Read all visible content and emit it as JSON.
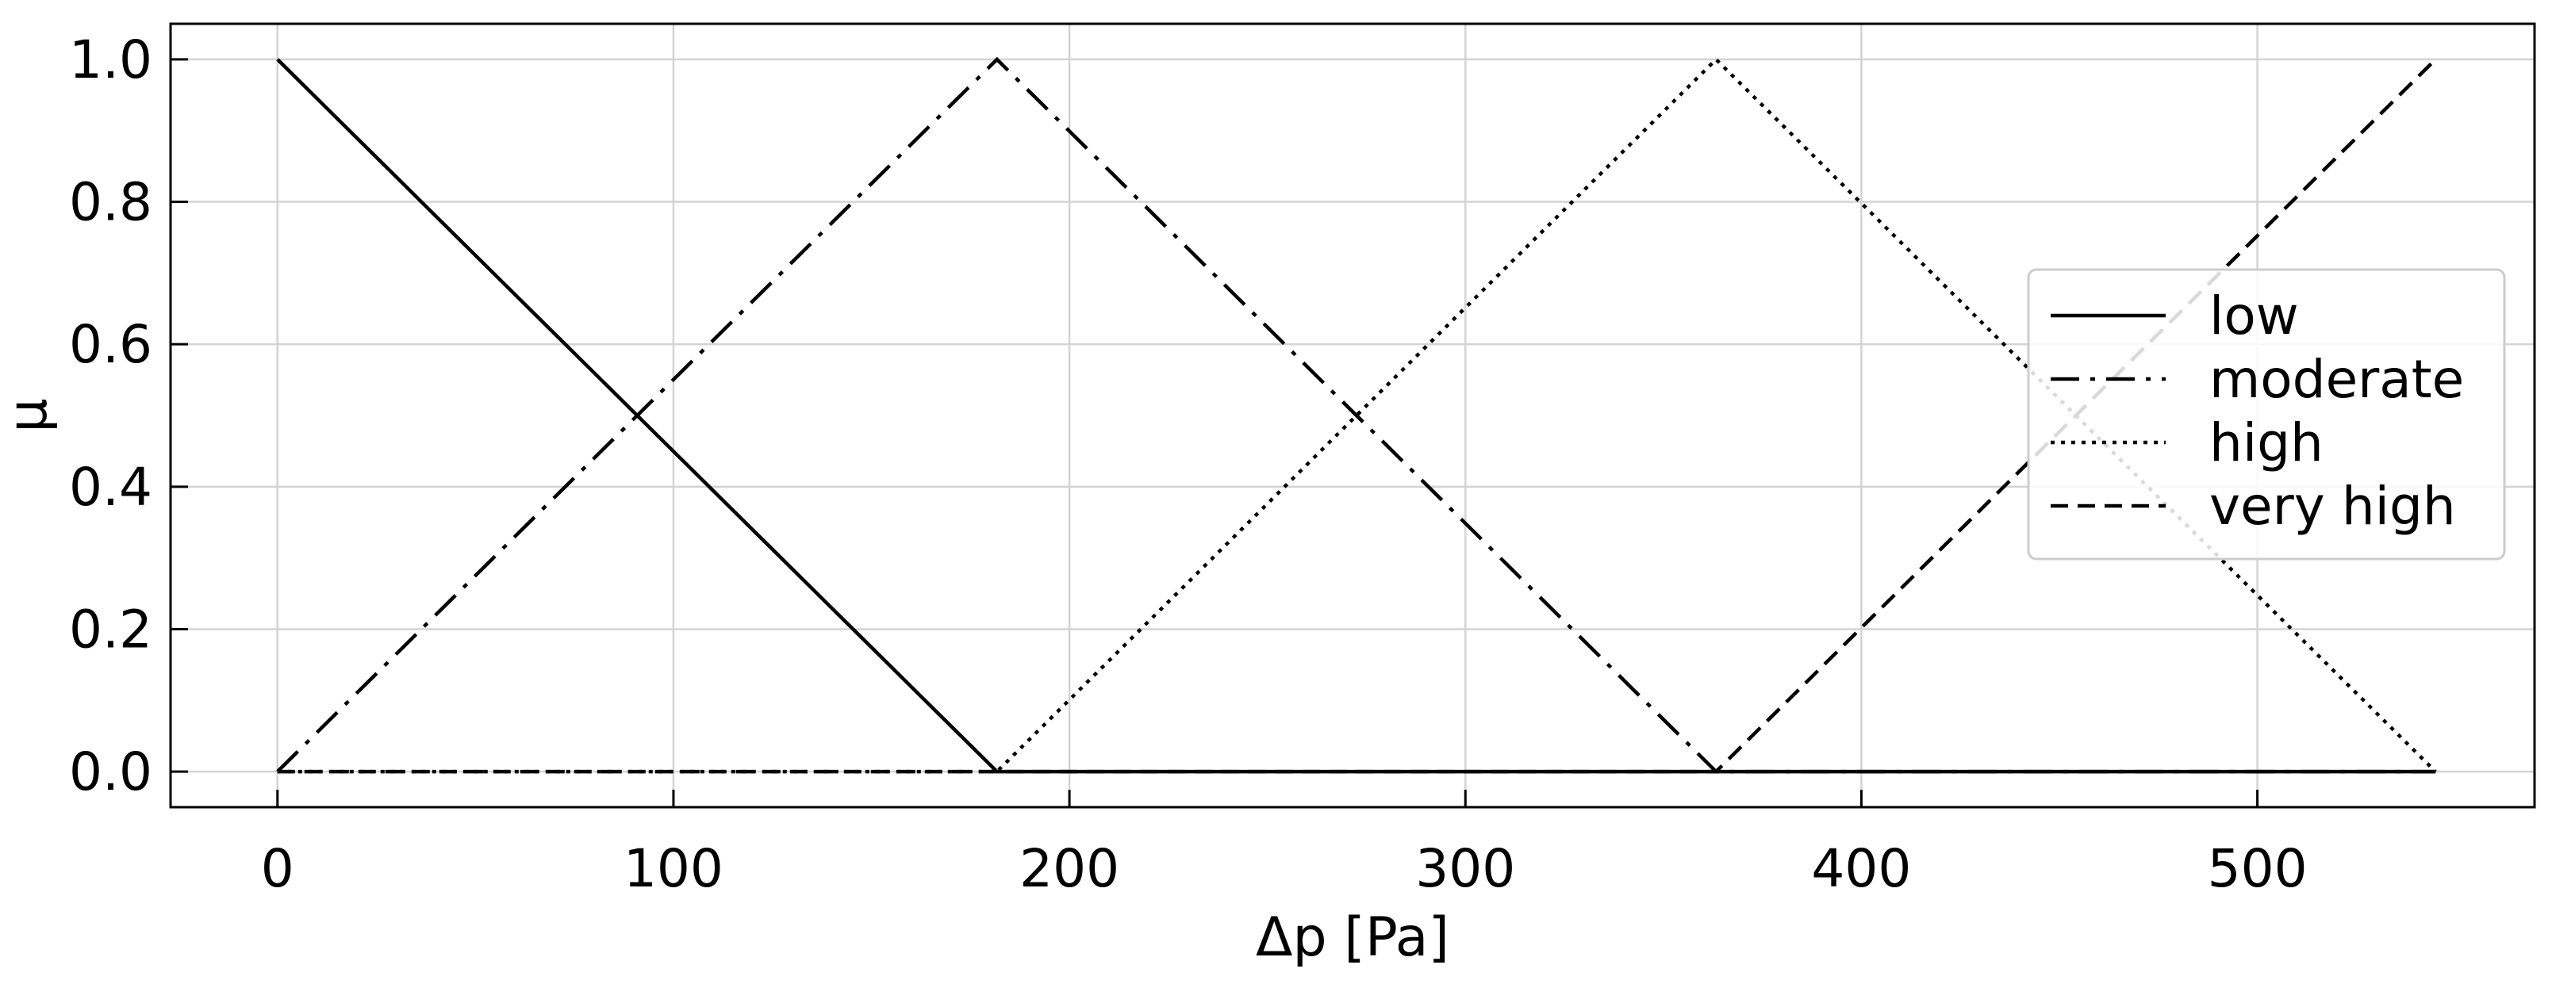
{
  "chart_data": {
    "type": "line",
    "title": "",
    "xlabel": "Δp [Pa]",
    "ylabel": "μ",
    "xlim": [
      -27,
      570
    ],
    "ylim": [
      -0.05,
      1.05
    ],
    "xticks": [
      0,
      100,
      200,
      300,
      400,
      500
    ],
    "yticks": [
      0.0,
      0.2,
      0.4,
      0.6,
      0.8,
      1.0
    ],
    "xtick_labels": [
      "0",
      "100",
      "200",
      "300",
      "400",
      "500"
    ],
    "ytick_labels": [
      "0.0",
      "0.2",
      "0.4",
      "0.6",
      "0.8",
      "1.0"
    ],
    "grid": true,
    "legend_position": "center-right",
    "series": [
      {
        "name": "low",
        "style": "solid",
        "color": "#000000",
        "x": [
          0,
          181.7,
          545
        ],
        "y": [
          1.0,
          0.0,
          0.0
        ]
      },
      {
        "name": "moderate",
        "style": "dashdot",
        "color": "#000000",
        "x": [
          0,
          181.7,
          363.3,
          545
        ],
        "y": [
          0.0,
          1.0,
          0.0,
          0.0
        ]
      },
      {
        "name": "high",
        "style": "dotted",
        "color": "#000000",
        "x": [
          0,
          181.7,
          363.3,
          545
        ],
        "y": [
          0.0,
          0.0,
          1.0,
          0.0
        ]
      },
      {
        "name": "very high",
        "style": "dashed",
        "color": "#000000",
        "x": [
          0,
          363.3,
          545
        ],
        "y": [
          0.0,
          0.0,
          1.0
        ]
      }
    ]
  }
}
